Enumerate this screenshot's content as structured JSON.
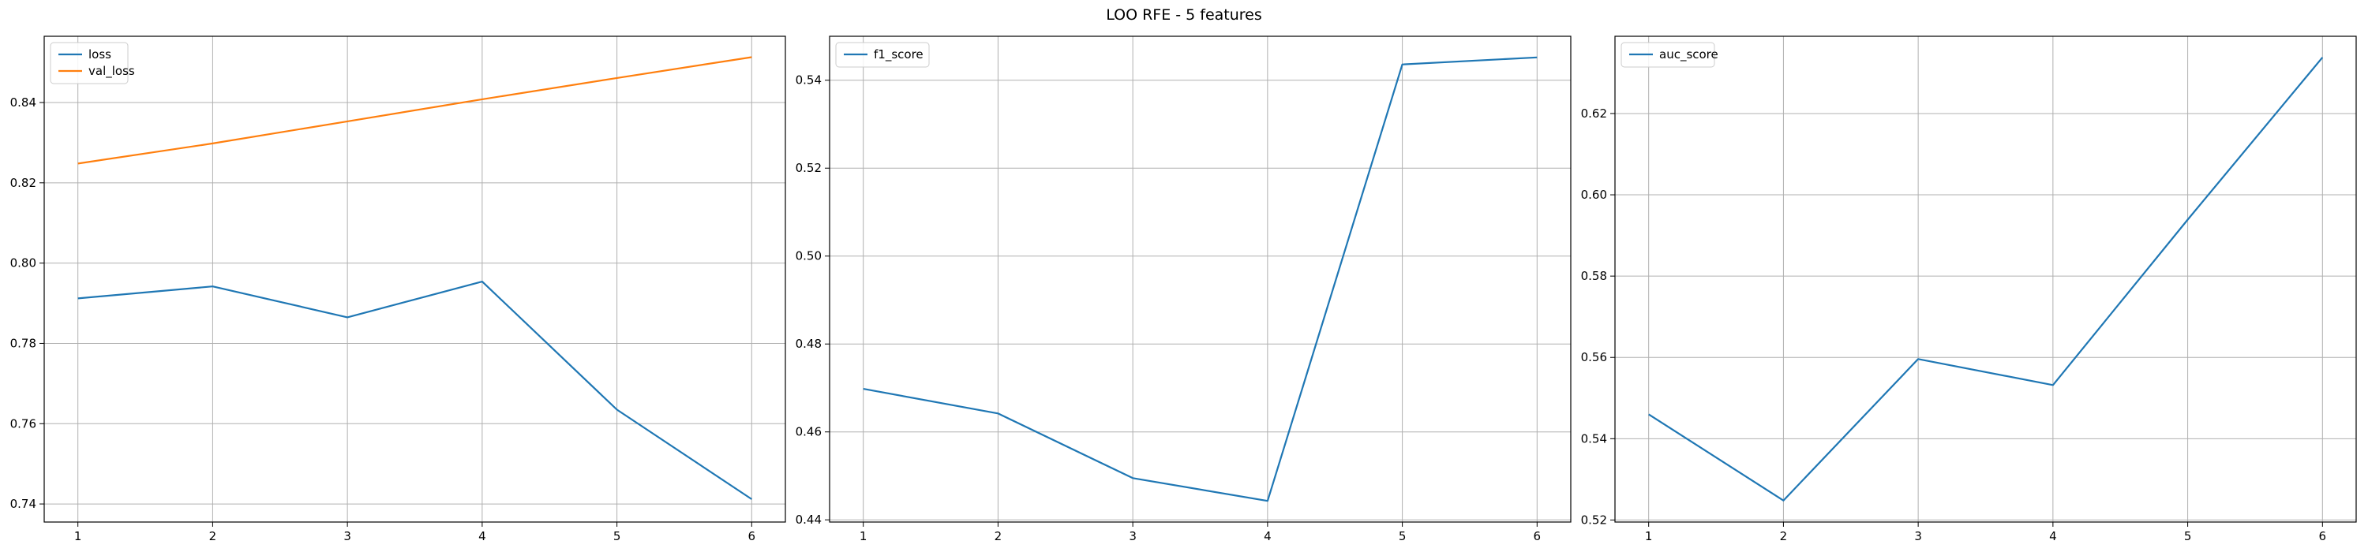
{
  "figure_title": "LOO RFE - 5 features",
  "chart_data": [
    {
      "type": "line",
      "title": "",
      "xlabel": "",
      "ylabel": "",
      "x": [
        1,
        2,
        3,
        4,
        5,
        6
      ],
      "xlim": [
        0.75,
        6.25
      ],
      "ylim": [
        0.7355,
        0.8565
      ],
      "xticks": [
        1,
        2,
        3,
        4,
        5,
        6
      ],
      "yticks": [
        0.74,
        0.76,
        0.78,
        0.8,
        0.82,
        0.84
      ],
      "grid": true,
      "legend_position": "upper-left",
      "series": [
        {
          "name": "loss",
          "color": "#1f77b4",
          "values": [
            0.7912,
            0.7942,
            0.7865,
            0.7954,
            0.7635,
            0.7412
          ]
        },
        {
          "name": "val_loss",
          "color": "#ff7f0e",
          "values": [
            0.8248,
            0.8298,
            0.8353,
            0.8408,
            0.8461,
            0.8513
          ]
        }
      ]
    },
    {
      "type": "line",
      "title": "",
      "xlabel": "",
      "ylabel": "",
      "x": [
        1,
        2,
        3,
        4,
        5,
        6
      ],
      "xlim": [
        0.75,
        6.25
      ],
      "ylim": [
        0.4395,
        0.55
      ],
      "xticks": [
        1,
        2,
        3,
        4,
        5,
        6
      ],
      "yticks": [
        0.44,
        0.46,
        0.48,
        0.5,
        0.52,
        0.54
      ],
      "grid": true,
      "legend_position": "upper-left",
      "series": [
        {
          "name": "f1_score",
          "color": "#1f77b4",
          "values": [
            0.4698,
            0.4642,
            0.4495,
            0.4443,
            0.5436,
            0.5452
          ]
        }
      ]
    },
    {
      "type": "line",
      "title": "",
      "xlabel": "",
      "ylabel": "",
      "x": [
        1,
        2,
        3,
        4,
        5,
        6
      ],
      "xlim": [
        0.75,
        6.25
      ],
      "ylim": [
        0.5195,
        0.639
      ],
      "xticks": [
        1,
        2,
        3,
        4,
        5,
        6
      ],
      "yticks": [
        0.52,
        0.54,
        0.56,
        0.58,
        0.6,
        0.62
      ],
      "grid": true,
      "legend_position": "upper-left",
      "series": [
        {
          "name": "auc_score",
          "color": "#1f77b4",
          "values": [
            0.546,
            0.5248,
            0.5596,
            0.5532,
            0.5939,
            0.6338
          ]
        }
      ]
    }
  ]
}
